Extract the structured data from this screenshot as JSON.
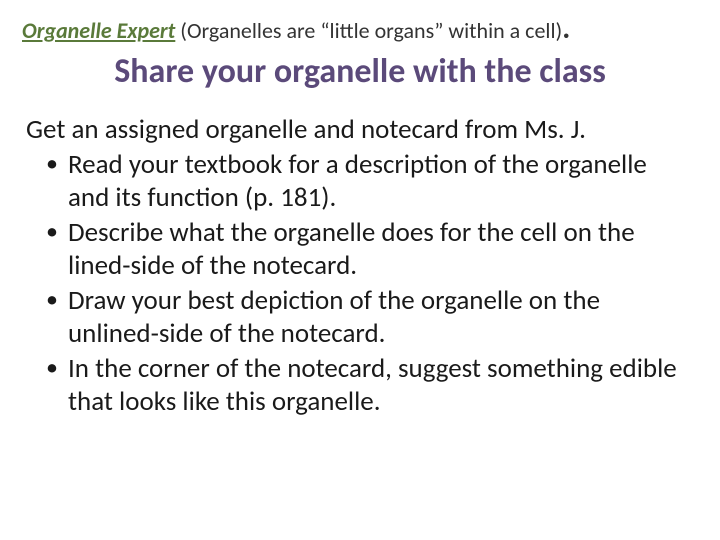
{
  "header": {
    "title": "Organelle Expert",
    "paren": " (Organelles are “little organs” within a cell)",
    "dot": "."
  },
  "subtitle": "Share your organelle with the class",
  "intro": "Get an assigned organelle and notecard from Ms. J.",
  "bullets": [
    "Read your textbook  for a description of the organelle and its function (p. 181).",
    "Describe what the organelle does for the cell on the lined-side of the notecard.",
    "Draw your best depiction of the organelle on the unlined-side of the notecard.",
    "In the corner of the notecard, suggest something edible that looks like this organelle."
  ],
  "colors": {
    "title_color": "#5a7a3a",
    "subtitle_color": "#5b4a7a",
    "body_text": "#1a1a1a",
    "background": "#ffffff"
  },
  "typography": {
    "header_fontsize": 22,
    "subtitle_fontsize": 34,
    "body_fontsize": 27,
    "font_family": "Calibri"
  }
}
